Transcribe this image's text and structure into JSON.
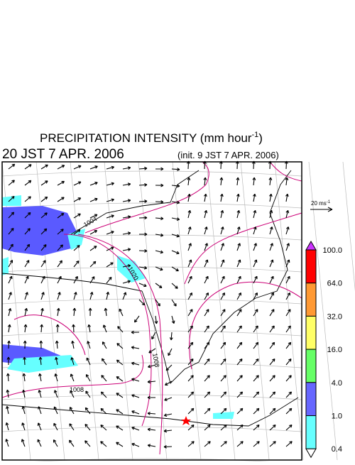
{
  "header": {
    "title": "PRECIPITATION INTENSITY (mm hour",
    "title_sup": "-1",
    "title_end": ")",
    "valid_time": "20 JST 7 APR. 2006",
    "init_time": "(init. 9 JST 7 APR. 2006)"
  },
  "reference_vector": {
    "label": "20 ms",
    "label_sup": "-1"
  },
  "colorbar": {
    "labels": [
      "100.0",
      "64.0",
      "32.0",
      "16.0",
      "4.0",
      "1.0",
      "0.4"
    ],
    "colors": [
      "#ff0000",
      "#ff9933",
      "#ffff66",
      "#66ff66",
      "#6666ff",
      "#66ffff"
    ],
    "over_color": "#cc33ff",
    "under_color": "#ffffff"
  },
  "contour_labels": [
    "1020",
    "1008",
    "1004",
    "1008"
  ]
}
